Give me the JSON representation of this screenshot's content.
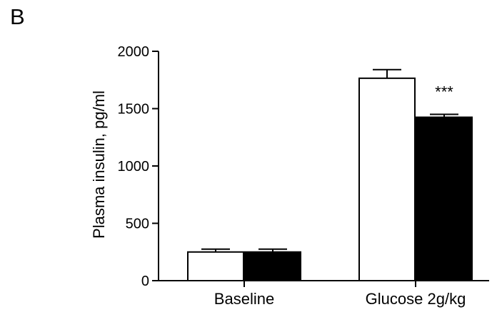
{
  "panel_label": "B",
  "chart_data": {
    "type": "bar",
    "title": "",
    "xlabel": "",
    "ylabel": "Plasma insulin,  pg/ml",
    "ylim": [
      0,
      2000
    ],
    "yticks": [
      0,
      500,
      1000,
      1500,
      2000
    ],
    "ytick_labels": [
      "0",
      "500",
      "1000",
      "1500",
      "2000"
    ],
    "categories": [
      "Baseline",
      "Glucose 2g/kg"
    ],
    "legend": false,
    "grid": false,
    "series": [
      {
        "values": [
          250,
          1765
        ],
        "errors": [
          25,
          75
        ],
        "color": "#ffffff"
      },
      {
        "values": [
          250,
          1425
        ],
        "errors": [
          25,
          25
        ],
        "color": "#000000"
      }
    ],
    "annotations": [
      {
        "category_index": 1,
        "series_index": 1,
        "text": "***"
      }
    ]
  }
}
